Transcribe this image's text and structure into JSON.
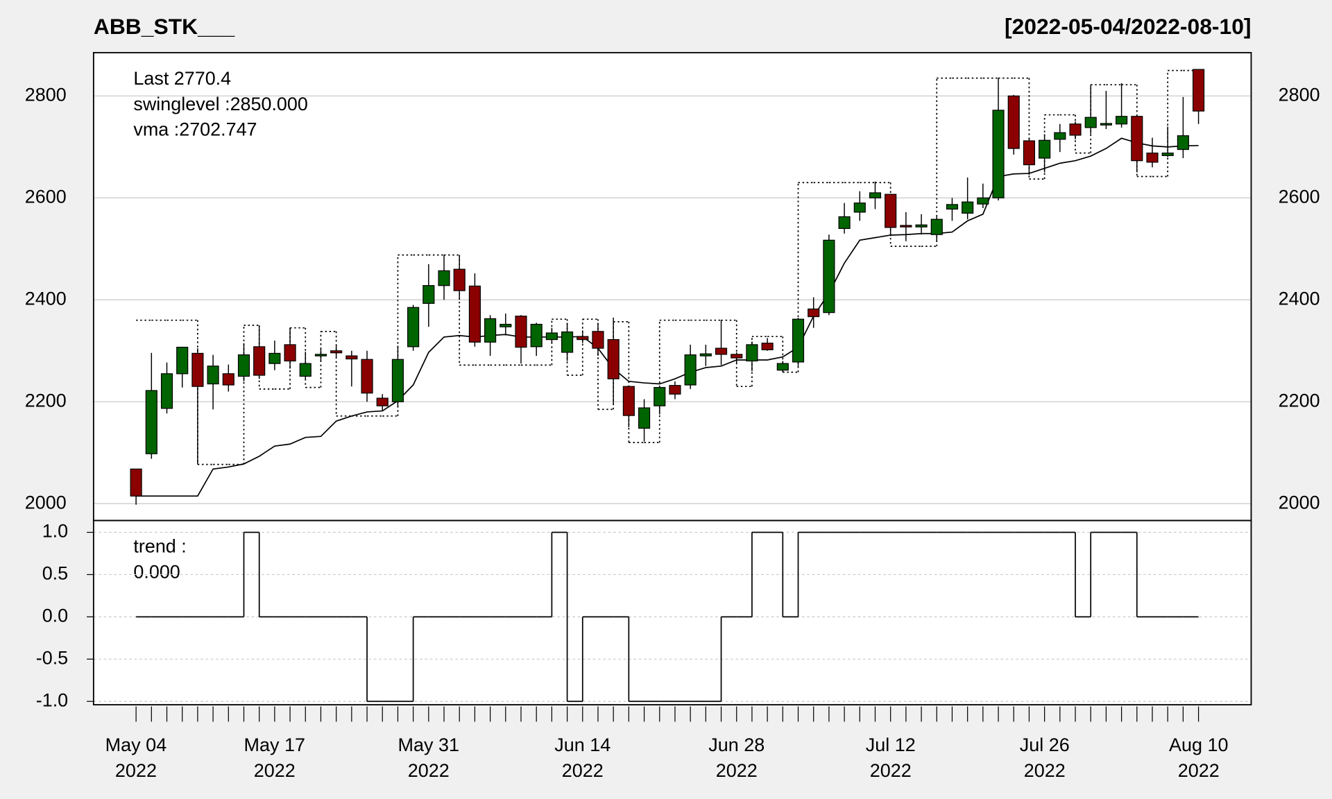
{
  "chart_data": [
    {
      "type": "candlestick",
      "title": "ABB_STK___",
      "subtitle": "[2022-05-04/2022-08-10]",
      "categories": [
        "May 04\n2022",
        null,
        null,
        null,
        null,
        null,
        null,
        null,
        null,
        "May 17\n2022",
        null,
        null,
        null,
        null,
        null,
        null,
        null,
        null,
        null,
        "May 31\n2022",
        null,
        null,
        null,
        null,
        null,
        null,
        null,
        null,
        null,
        "Jun 14\n2022",
        null,
        null,
        null,
        null,
        null,
        null,
        null,
        null,
        null,
        "Jun 28\n2022",
        null,
        null,
        null,
        null,
        null,
        null,
        null,
        null,
        null,
        "Jul 12\n2022",
        null,
        null,
        null,
        null,
        null,
        null,
        null,
        null,
        null,
        "Jul 26\n2022",
        null,
        null,
        null,
        null,
        null,
        null,
        null,
        null,
        null,
        "Aug 10\n2022"
      ],
      "xlim": [
        -2.76,
        72.42
      ],
      "open": [
        2068,
        2098,
        2187,
        2255,
        2295,
        2235,
        2255,
        2250,
        2308,
        2275,
        2312,
        2250,
        2290,
        2300,
        2290,
        2283,
        2207,
        2200,
        2308,
        2393,
        2428,
        2460,
        2427,
        2317,
        2347,
        2368,
        2308,
        2322,
        2297,
        2328,
        2338,
        2322,
        2230,
        2148,
        2192,
        2232,
        2233,
        2290,
        2305,
        2293,
        2280,
        2315,
        2262,
        2278,
        2382,
        2375,
        2540,
        2572,
        2600,
        2607,
        2546,
        2543,
        2528,
        2578,
        2570,
        2588,
        2600,
        2800,
        2712,
        2678,
        2715,
        2745,
        2738,
        2743,
        2745,
        2760,
        2688,
        2683,
        2695,
        2852
      ],
      "high": [
        2068,
        2296,
        2277,
        2308,
        2305,
        2292,
        2273,
        2315,
        2350,
        2320,
        2345,
        2298,
        2305,
        2310,
        2300,
        2300,
        2215,
        2310,
        2390,
        2470,
        2488,
        2488,
        2452,
        2370,
        2373,
        2370,
        2355,
        2345,
        2355,
        2340,
        2355,
        2365,
        2232,
        2205,
        2230,
        2240,
        2312,
        2312,
        2360,
        2297,
        2318,
        2325,
        2280,
        2365,
        2405,
        2528,
        2590,
        2613,
        2632,
        2608,
        2572,
        2568,
        2565,
        2600,
        2640,
        2628,
        2835,
        2802,
        2718,
        2725,
        2745,
        2750,
        2822,
        2810,
        2825,
        2762,
        2718,
        2740,
        2798,
        2852
      ],
      "low": [
        1998,
        2088,
        2177,
        2228,
        2077,
        2185,
        2220,
        2240,
        2245,
        2262,
        2265,
        2245,
        2280,
        2285,
        2230,
        2200,
        2183,
        2190,
        2300,
        2347,
        2400,
        2400,
        2308,
        2290,
        2330,
        2275,
        2290,
        2315,
        2280,
        2315,
        2290,
        2195,
        2150,
        2122,
        2175,
        2205,
        2225,
        2270,
        2272,
        2275,
        2260,
        2300,
        2258,
        2270,
        2345,
        2370,
        2530,
        2555,
        2578,
        2525,
        2515,
        2528,
        2515,
        2555,
        2558,
        2580,
        2595,
        2685,
        2645,
        2650,
        2690,
        2715,
        2725,
        2735,
        2738,
        2650,
        2660,
        2680,
        2678,
        2745
      ],
      "close": [
        2015,
        2222,
        2255,
        2307,
        2230,
        2270,
        2233,
        2292,
        2252,
        2295,
        2280,
        2275,
        2293,
        2296,
        2284,
        2217,
        2192,
        2283,
        2385,
        2428,
        2457,
        2418,
        2317,
        2363,
        2352,
        2307,
        2352,
        2335,
        2337,
        2322,
        2305,
        2245,
        2173,
        2188,
        2228,
        2215,
        2292,
        2294,
        2293,
        2286,
        2312,
        2302,
        2275,
        2362,
        2367,
        2517,
        2563,
        2590,
        2610,
        2542,
        2543,
        2547,
        2558,
        2587,
        2592,
        2600,
        2772,
        2697,
        2665,
        2713,
        2728,
        2723,
        2758,
        2746,
        2760,
        2673,
        2670,
        2688,
        2722,
        2770.4
      ],
      "up_color": "#006400",
      "down_color": "#8b0000",
      "annotation": "Last 2770.4",
      "annotation_color": "#8b0000",
      "series": [
        {
          "type": "step",
          "color": "#000000",
          "dash": "dotted",
          "legend": "swinglevel :2850.000",
          "values": [
            2360,
            2360,
            2360,
            2360,
            2077,
            2077,
            2077,
            2350,
            2225,
            2225,
            2345,
            2228,
            2338,
            2172,
            2172,
            2172,
            2172,
            2488,
            2488,
            2488,
            2488,
            2272,
            2272,
            2272,
            2272,
            2272,
            2272,
            2362,
            2252,
            2362,
            2185,
            2357,
            2120,
            2120,
            2360,
            2360,
            2360,
            2360,
            2360,
            2230,
            2328,
            2328,
            2258,
            2630,
            2630,
            2630,
            2630,
            2630,
            2630,
            2505,
            2505,
            2505,
            2835,
            2835,
            2835,
            2835,
            2835,
            2835,
            2637,
            2763,
            2763,
            2688,
            2822,
            2822,
            2822,
            2642,
            2642,
            2850,
            2850,
            2850
          ]
        },
        {
          "type": "line",
          "color": "#000000",
          "legend": "vma :2702.747",
          "values": [
            2015,
            2015,
            2015,
            2015,
            2015,
            2068,
            2072,
            2078,
            2093,
            2113,
            2117,
            2130,
            2132,
            2162,
            2172,
            2180,
            2182,
            2202,
            2233,
            2297,
            2327,
            2330,
            2327,
            2330,
            2332,
            2327,
            2327,
            2327,
            2327,
            2328,
            2305,
            2265,
            2240,
            2237,
            2235,
            2245,
            2258,
            2267,
            2270,
            2282,
            2282,
            2282,
            2288,
            2307,
            2368,
            2413,
            2472,
            2517,
            2522,
            2527,
            2528,
            2530,
            2530,
            2533,
            2555,
            2568,
            2642,
            2647,
            2648,
            2658,
            2668,
            2673,
            2682,
            2697,
            2717,
            2708,
            2702,
            2700,
            2702,
            2702.747
          ]
        }
      ],
      "ylim": [
        1967,
        2885
      ],
      "yticks": [
        2000,
        2200,
        2400,
        2600,
        2800
      ],
      "grid": true
    },
    {
      "type": "step",
      "legend": "trend :",
      "last_label": "0.000",
      "color": "#000000",
      "values": [
        0,
        0,
        0,
        0,
        0,
        0,
        0,
        1,
        0,
        0,
        0,
        0,
        0,
        0,
        0,
        -1,
        -1,
        -1,
        0,
        0,
        0,
        0,
        0,
        0,
        0,
        0,
        0,
        1,
        -1,
        0,
        0,
        0,
        -1,
        -1,
        -1,
        -1,
        -1,
        -1,
        0,
        0,
        1,
        1,
        0,
        1,
        1,
        1,
        1,
        1,
        1,
        1,
        1,
        1,
        1,
        1,
        1,
        1,
        1,
        1,
        1,
        1,
        1,
        0,
        1,
        1,
        1,
        0,
        0,
        0,
        0,
        0
      ],
      "ylim": [
        -1.04,
        1.14
      ],
      "yticks": [
        {
          "value": 1,
          "label": "1.0"
        },
        {
          "value": 0.5,
          "label": "0.5"
        },
        {
          "value": 0,
          "label": "0.0"
        },
        {
          "value": -0.5,
          "label": "-0.5"
        },
        {
          "value": -1,
          "label": "-1.0"
        }
      ],
      "grid": true
    }
  ]
}
